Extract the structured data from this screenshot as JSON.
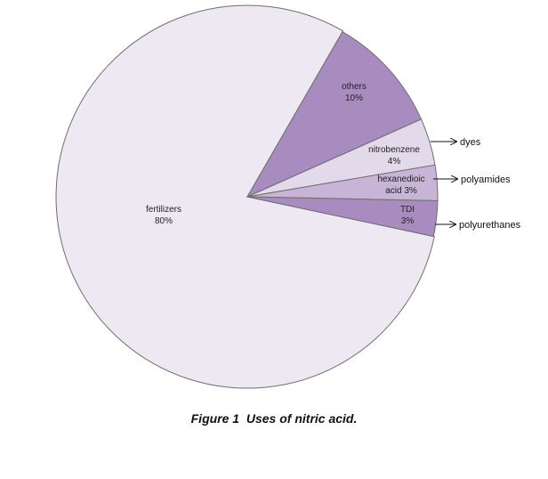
{
  "chart_data": {
    "type": "pie",
    "slices": [
      {
        "label": "fertilizers",
        "value": 80,
        "value_label": "80%",
        "color": "#ede8f1"
      },
      {
        "label": "others",
        "value": 10,
        "value_label": "10%",
        "color": "#a88cc0"
      },
      {
        "label": "nitrobenzene",
        "value": 4,
        "value_label": "4%",
        "color": "#e2d9ea"
      },
      {
        "label": "hexanedioic acid",
        "value": 3,
        "value_label": "3%",
        "color": "#c7b4d6"
      },
      {
        "label": "TDI",
        "value": 3,
        "value_label": "3%",
        "color": "#a88cc0"
      }
    ],
    "annotations": [
      {
        "text": "dyes",
        "target": "nitrobenzene"
      },
      {
        "text": "polyamides",
        "target": "hexanedioic acid"
      },
      {
        "text": "polyurethanes",
        "target": "TDI"
      }
    ],
    "legend": "none"
  },
  "caption": {
    "figure": "Figure 1",
    "text": "Uses of nitric acid."
  }
}
